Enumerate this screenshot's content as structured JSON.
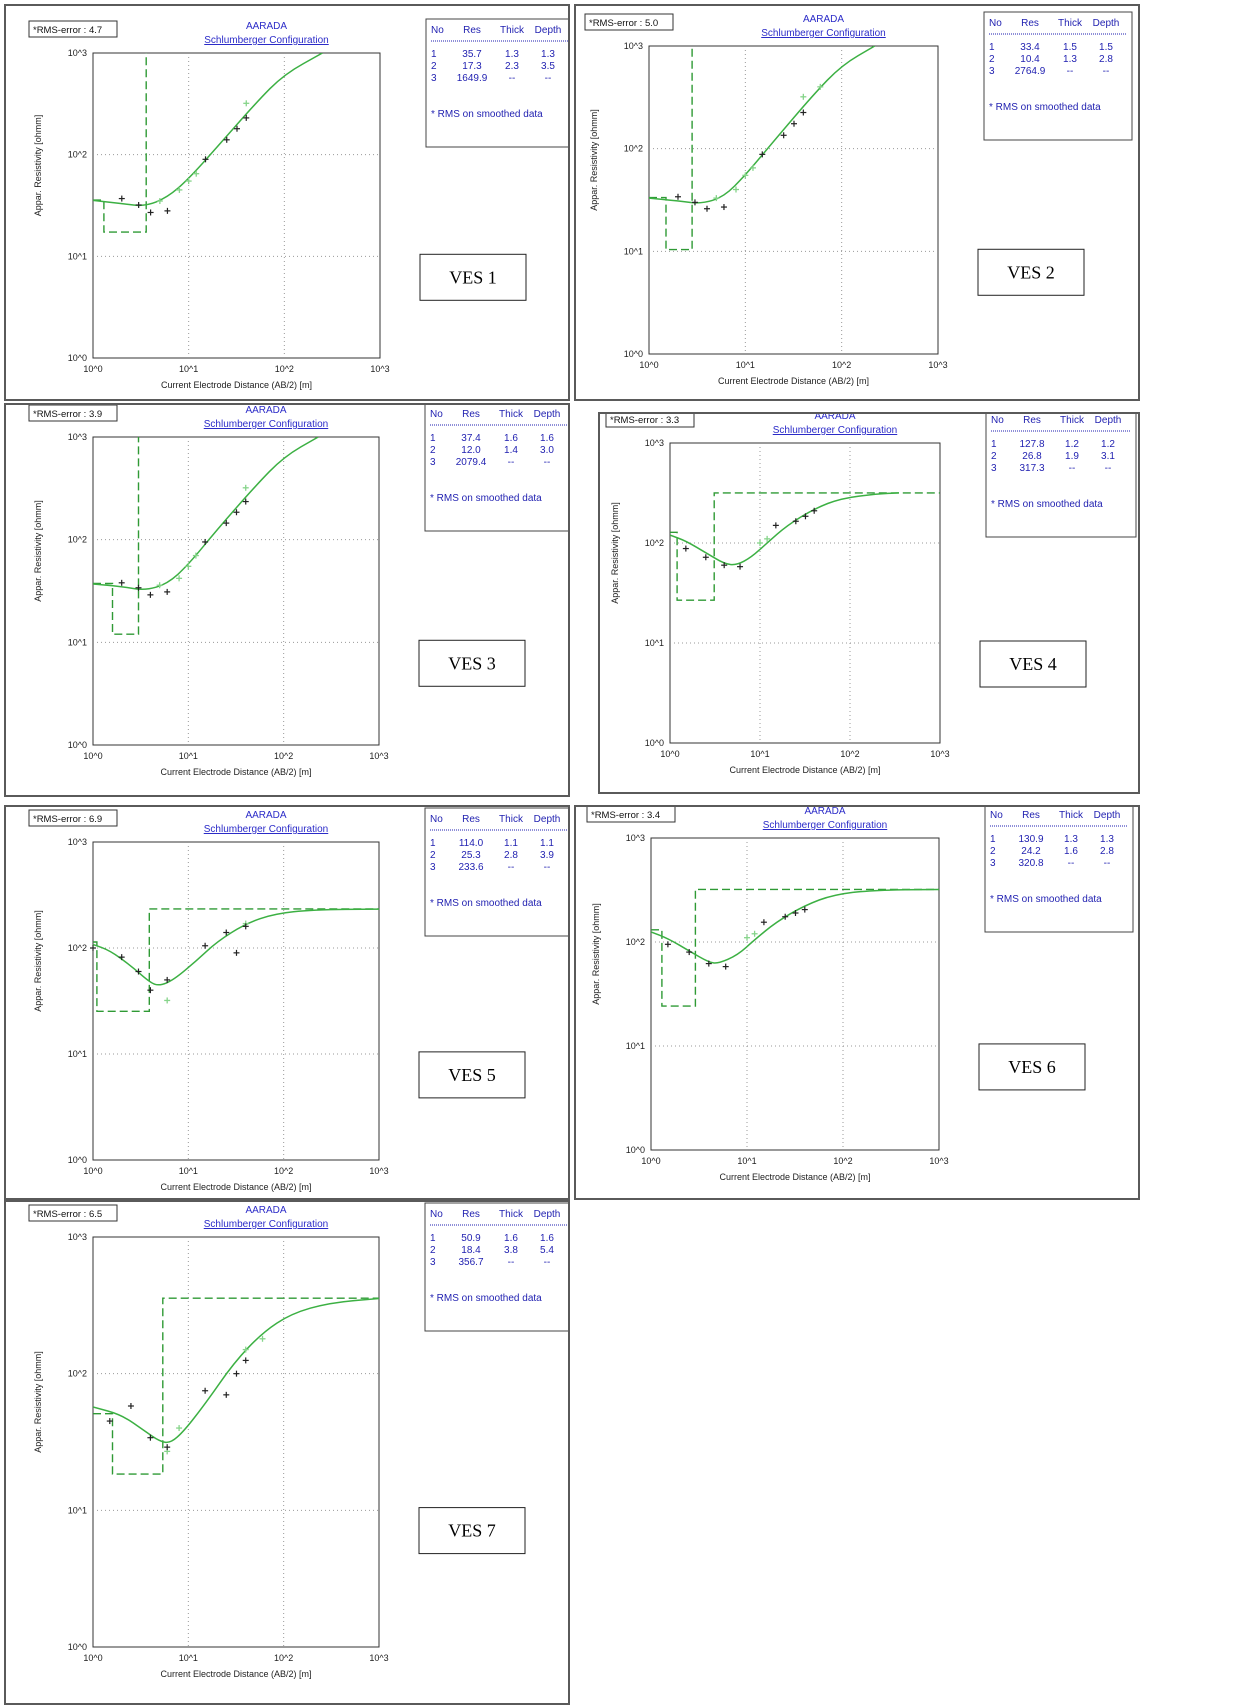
{
  "chart_data": [
    {
      "type": "scatter",
      "label": "VES 1",
      "rms_label": "*RMS-error :",
      "rms": "4.7",
      "title": "AARADA",
      "subtitle": "Schlumberger Configuration",
      "xlabel": "Current Electrode Distance (AB/2) [m]",
      "ylabel": "Appar. Resistivity [ohmm]",
      "x_ticks": [
        "10^0",
        "10^1",
        "10^2",
        "10^3"
      ],
      "y_ticks": [
        "10^0",
        "10^1",
        "10^2",
        "10^3"
      ],
      "xlim": [
        1,
        1000
      ],
      "ylim": [
        1,
        1000
      ],
      "log_x": true,
      "log_y": true,
      "table_headers": [
        "No",
        "Res",
        "Thick",
        "Depth"
      ],
      "table_rows": [
        [
          "1",
          "35.7",
          "1.3",
          "1.3"
        ],
        [
          "2",
          "17.3",
          "2.3",
          "3.5"
        ],
        [
          "3",
          "1649.9",
          "--",
          "--"
        ]
      ],
      "table_note": "* RMS on smoothed data",
      "observed_points": [
        [
          2,
          37
        ],
        [
          3,
          32
        ],
        [
          4,
          27
        ],
        [
          6,
          28
        ],
        [
          15,
          90
        ],
        [
          25,
          140
        ],
        [
          32,
          180
        ],
        [
          40,
          230
        ]
      ],
      "smoothed_points": [
        [
          5,
          35
        ],
        [
          8,
          45
        ],
        [
          10,
          55
        ],
        [
          12,
          65
        ],
        [
          40,
          320
        ]
      ],
      "model_layers": [
        {
          "res": 35.7,
          "thick": 1.3
        },
        {
          "res": 17.3,
          "thick": 2.3
        },
        {
          "res": 1649.9
        }
      ],
      "fitted_curve": [
        [
          1,
          35.5
        ],
        [
          2,
          33
        ],
        [
          3.5,
          31
        ],
        [
          6,
          38
        ],
        [
          10,
          58
        ],
        [
          20,
          120
        ],
        [
          50,
          320
        ],
        [
          100,
          620
        ],
        [
          250,
          1000
        ]
      ]
    },
    {
      "type": "scatter",
      "label": "VES 2",
      "rms_label": "*RMS-error :",
      "rms": "5.0",
      "title": "AARADA",
      "subtitle": "Schlumberger Configuration",
      "xlabel": "Current Electrode Distance (AB/2) [m]",
      "ylabel": "Appar. Resistivity [ohmm]",
      "x_ticks": [
        "10^0",
        "10^1",
        "10^2",
        "10^3"
      ],
      "y_ticks": [
        "10^0",
        "10^1",
        "10^2",
        "10^3"
      ],
      "xlim": [
        1,
        1000
      ],
      "ylim": [
        1,
        1000
      ],
      "log_x": true,
      "log_y": true,
      "table_headers": [
        "No",
        "Res",
        "Thick",
        "Depth"
      ],
      "table_rows": [
        [
          "1",
          "33.4",
          "1.5",
          "1.5"
        ],
        [
          "2",
          "10.4",
          "1.3",
          "2.8"
        ],
        [
          "3",
          "2764.9",
          "--",
          "--"
        ]
      ],
      "table_note": "* RMS on smoothed data",
      "observed_points": [
        [
          2,
          34
        ],
        [
          3,
          30
        ],
        [
          4,
          26
        ],
        [
          6,
          27
        ],
        [
          15,
          88
        ],
        [
          25,
          135
        ],
        [
          32,
          175
        ],
        [
          40,
          225
        ]
      ],
      "smoothed_points": [
        [
          5,
          33
        ],
        [
          8,
          40
        ],
        [
          10,
          55
        ],
        [
          12,
          65
        ],
        [
          40,
          320
        ],
        [
          60,
          400
        ]
      ],
      "model_layers": [
        {
          "res": 33.4,
          "thick": 1.5
        },
        {
          "res": 10.4,
          "thick": 1.3
        },
        {
          "res": 2764.9
        }
      ],
      "fitted_curve": [
        [
          1,
          33
        ],
        [
          2,
          31
        ],
        [
          3.5,
          29
        ],
        [
          6,
          34
        ],
        [
          10,
          55
        ],
        [
          20,
          120
        ],
        [
          50,
          330
        ],
        [
          100,
          650
        ],
        [
          220,
          1000
        ]
      ]
    },
    {
      "type": "scatter",
      "label": "VES 3",
      "rms_label": "*RMS-error :",
      "rms": "3.9",
      "title": "AARADA",
      "subtitle": "Schlumberger Configuration",
      "xlabel": "Current Electrode Distance (AB/2) [m]",
      "ylabel": "Appar. Resistivity [ohmm]",
      "x_ticks": [
        "10^0",
        "10^1",
        "10^2",
        "10^3"
      ],
      "y_ticks": [
        "10^0",
        "10^1",
        "10^2",
        "10^3"
      ],
      "xlim": [
        1,
        1000
      ],
      "ylim": [
        1,
        1000
      ],
      "log_x": true,
      "log_y": true,
      "table_headers": [
        "No",
        "Res",
        "Thick",
        "Depth"
      ],
      "table_rows": [
        [
          "1",
          "37.4",
          "1.6",
          "1.6"
        ],
        [
          "2",
          "12.0",
          "1.4",
          "3.0"
        ],
        [
          "3",
          "2079.4",
          "--",
          "--"
        ]
      ],
      "table_note": "* RMS on smoothed data",
      "observed_points": [
        [
          2,
          38
        ],
        [
          3,
          34
        ],
        [
          4,
          29
        ],
        [
          6,
          31
        ],
        [
          15,
          95
        ],
        [
          25,
          145
        ],
        [
          32,
          185
        ],
        [
          40,
          235
        ]
      ],
      "smoothed_points": [
        [
          5,
          36
        ],
        [
          8,
          42
        ],
        [
          10,
          55
        ],
        [
          12,
          70
        ],
        [
          40,
          320
        ]
      ],
      "model_layers": [
        {
          "res": 37.4,
          "thick": 1.6
        },
        {
          "res": 12.0,
          "thick": 1.4
        },
        {
          "res": 2079.4
        }
      ],
      "fitted_curve": [
        [
          1,
          37
        ],
        [
          2,
          35
        ],
        [
          3.5,
          32
        ],
        [
          6,
          37
        ],
        [
          10,
          57
        ],
        [
          20,
          125
        ],
        [
          50,
          330
        ],
        [
          100,
          640
        ],
        [
          230,
          1000
        ]
      ]
    },
    {
      "type": "scatter",
      "label": "VES 4",
      "rms_label": "*RMS-error :",
      "rms": "3.3",
      "title": "AARADA",
      "subtitle": "Schlumberger Configuration",
      "xlabel": "Current Electrode Distance (AB/2) [m]",
      "ylabel": "Appar. Resistivity [ohmm]",
      "x_ticks": [
        "10^0",
        "10^1",
        "10^2",
        "10^3"
      ],
      "y_ticks": [
        "10^0",
        "10^1",
        "10^2",
        "10^3"
      ],
      "xlim": [
        1,
        1000
      ],
      "ylim": [
        1,
        1000
      ],
      "log_x": true,
      "log_y": true,
      "table_headers": [
        "No",
        "Res",
        "Thick",
        "Depth"
      ],
      "table_rows": [
        [
          "1",
          "127.8",
          "1.2",
          "1.2"
        ],
        [
          "2",
          "26.8",
          "1.9",
          "3.1"
        ],
        [
          "3",
          "317.3",
          "--",
          "--"
        ]
      ],
      "table_note": "* RMS on smoothed data",
      "observed_points": [
        [
          1.5,
          88
        ],
        [
          2.5,
          72
        ],
        [
          4,
          60
        ],
        [
          6,
          58
        ],
        [
          15,
          150
        ],
        [
          25,
          165
        ],
        [
          32,
          185
        ],
        [
          40,
          210
        ]
      ],
      "smoothed_points": [
        [
          10,
          100
        ],
        [
          12,
          110
        ]
      ],
      "model_layers": [
        {
          "res": 127.8,
          "thick": 1.2
        },
        {
          "res": 26.8,
          "thick": 1.9
        },
        {
          "res": 317.3
        }
      ],
      "fitted_curve": [
        [
          1,
          120
        ],
        [
          1.5,
          105
        ],
        [
          2.5,
          80
        ],
        [
          4,
          62
        ],
        [
          5.5,
          60
        ],
        [
          8,
          72
        ],
        [
          12,
          100
        ],
        [
          20,
          150
        ],
        [
          40,
          220
        ],
        [
          80,
          280
        ],
        [
          200,
          310
        ],
        [
          350,
          317
        ]
      ]
    },
    {
      "type": "scatter",
      "label": "VES 5",
      "rms_label": "*RMS-error :",
      "rms": "6.9",
      "title": "AARADA",
      "subtitle": "Schlumberger Configuration",
      "xlabel": "Current Electrode Distance (AB/2) [m]",
      "ylabel": "Appar. Resistivity [ohmm]",
      "x_ticks": [
        "10^0",
        "10^1",
        "10^2",
        "10^3"
      ],
      "y_ticks": [
        "10^0",
        "10^1",
        "10^2",
        "10^3"
      ],
      "xlim": [
        1,
        1000
      ],
      "ylim": [
        1,
        1000
      ],
      "log_x": true,
      "log_y": true,
      "table_headers": [
        "No",
        "Res",
        "Thick",
        "Depth"
      ],
      "table_rows": [
        [
          "1",
          "114.0",
          "1.1",
          "1.1"
        ],
        [
          "2",
          "25.3",
          "2.8",
          "3.9"
        ],
        [
          "3",
          "233.6",
          "--",
          "--"
        ]
      ],
      "table_note": "* RMS on smoothed data",
      "observed_points": [
        [
          1,
          100
        ],
        [
          2,
          82
        ],
        [
          3,
          60
        ],
        [
          4,
          40
        ],
        [
          6,
          50
        ],
        [
          15,
          105
        ],
        [
          25,
          140
        ],
        [
          32,
          90
        ],
        [
          40,
          160
        ]
      ],
      "smoothed_points": [
        [
          6,
          32
        ],
        [
          40,
          170
        ]
      ],
      "model_layers": [
        {
          "res": 114.0,
          "thick": 1.1
        },
        {
          "res": 25.3,
          "thick": 2.8
        },
        {
          "res": 233.6
        }
      ],
      "fitted_curve": [
        [
          1,
          108
        ],
        [
          1.5,
          95
        ],
        [
          2.5,
          68
        ],
        [
          4,
          47
        ],
        [
          5,
          44
        ],
        [
          7,
          50
        ],
        [
          12,
          75
        ],
        [
          20,
          115
        ],
        [
          40,
          170
        ],
        [
          80,
          210
        ],
        [
          200,
          230
        ],
        [
          1000,
          233
        ]
      ]
    },
    {
      "type": "scatter",
      "label": "VES 6",
      "rms_label": "*RMS-error :",
      "rms": "3.4",
      "title": "AARADA",
      "subtitle": "Schlumberger Configuration",
      "xlabel": "Current Electrode Distance (AB/2) [m]",
      "ylabel": "Appar. Resistivity [ohmm]",
      "x_ticks": [
        "10^0",
        "10^1",
        "10^2",
        "10^3"
      ],
      "y_ticks": [
        "10^0",
        "10^1",
        "10^2",
        "10^3"
      ],
      "xlim": [
        1,
        1000
      ],
      "ylim": [
        1,
        1000
      ],
      "log_x": true,
      "log_y": true,
      "table_headers": [
        "No",
        "Res",
        "Thick",
        "Depth"
      ],
      "table_rows": [
        [
          "1",
          "130.9",
          "1.3",
          "1.3"
        ],
        [
          "2",
          "24.2",
          "1.6",
          "2.8"
        ],
        [
          "3",
          "320.8",
          "--",
          "--"
        ]
      ],
      "table_note": "* RMS on smoothed data",
      "observed_points": [
        [
          1.5,
          95
        ],
        [
          2.5,
          80
        ],
        [
          4,
          62
        ],
        [
          6,
          58
        ],
        [
          15,
          155
        ],
        [
          25,
          175
        ],
        [
          32,
          190
        ],
        [
          40,
          205
        ]
      ],
      "smoothed_points": [
        [
          10,
          110
        ],
        [
          12,
          120
        ]
      ],
      "model_layers": [
        {
          "res": 130.9,
          "thick": 1.3
        },
        {
          "res": 24.2,
          "thick": 1.6
        },
        {
          "res": 320.8
        }
      ],
      "fitted_curve": [
        [
          1,
          125
        ],
        [
          1.5,
          108
        ],
        [
          2.5,
          82
        ],
        [
          4,
          64
        ],
        [
          5,
          62
        ],
        [
          8,
          75
        ],
        [
          12,
          105
        ],
        [
          20,
          155
        ],
        [
          40,
          225
        ],
        [
          80,
          285
        ],
        [
          200,
          315
        ],
        [
          1000,
          320
        ]
      ]
    },
    {
      "type": "scatter",
      "label": "VES 7",
      "rms_label": "*RMS-error :",
      "rms": "6.5",
      "title": "AARADA",
      "subtitle": "Schlumberger Configuration",
      "xlabel": "Current Electrode Distance (AB/2) [m]",
      "ylabel": "Appar. Resistivity [ohmm]",
      "x_ticks": [
        "10^0",
        "10^1",
        "10^2",
        "10^3"
      ],
      "y_ticks": [
        "10^0",
        "10^1",
        "10^2",
        "10^3"
      ],
      "xlim": [
        1,
        1000
      ],
      "ylim": [
        1,
        1000
      ],
      "log_x": true,
      "log_y": true,
      "table_headers": [
        "No",
        "Res",
        "Thick",
        "Depth"
      ],
      "table_rows": [
        [
          "1",
          "50.9",
          "1.6",
          "1.6"
        ],
        [
          "2",
          "18.4",
          "3.8",
          "5.4"
        ],
        [
          "3",
          "356.7",
          "--",
          "--"
        ]
      ],
      "table_note": "* RMS on smoothed data",
      "observed_points": [
        [
          1.5,
          45
        ],
        [
          2.5,
          58
        ],
        [
          4,
          34
        ],
        [
          6,
          29
        ],
        [
          15,
          75
        ],
        [
          25,
          70
        ],
        [
          32,
          100
        ],
        [
          40,
          125
        ]
      ],
      "smoothed_points": [
        [
          6,
          27
        ],
        [
          8,
          40
        ],
        [
          40,
          150
        ],
        [
          60,
          180
        ]
      ],
      "model_layers": [
        {
          "res": 50.9,
          "thick": 1.6
        },
        {
          "res": 18.4,
          "thick": 3.8
        },
        {
          "res": 356.7
        }
      ],
      "fitted_curve": [
        [
          1,
          57
        ],
        [
          2,
          50
        ],
        [
          3.5,
          38
        ],
        [
          5,
          32
        ],
        [
          6.5,
          31
        ],
        [
          9,
          38
        ],
        [
          15,
          60
        ],
        [
          30,
          120
        ],
        [
          60,
          200
        ],
        [
          120,
          275
        ],
        [
          300,
          330
        ],
        [
          1000,
          355
        ]
      ]
    }
  ],
  "colors": {
    "curve": "#3cb043",
    "model": "#2f9a35",
    "smoothed": "#86d48a",
    "table_text": "#1f1fb0",
    "frame": "#5a5a5a"
  }
}
